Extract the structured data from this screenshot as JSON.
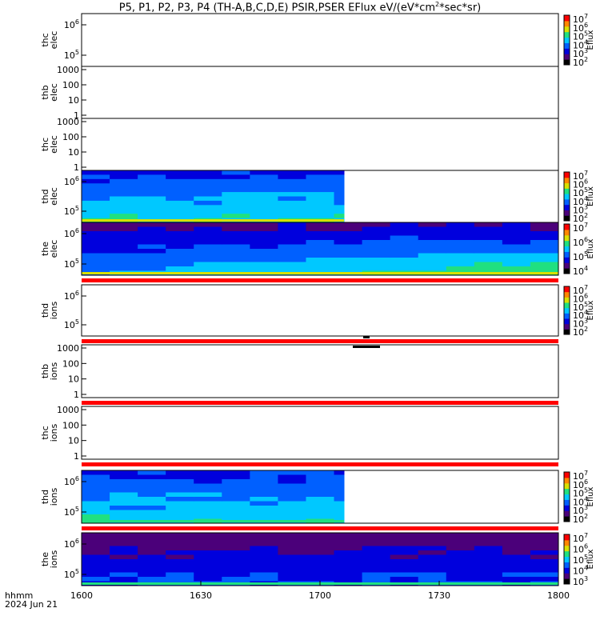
{
  "chart_data": {
    "type": "heatmap",
    "title": "P5, P1, P2, P3, P4 (TH-A,B,C,D,E) PSIR,PSER EFlux eV/(eV*cm",
    "title_sup": "2",
    "title_tail": "*sec*sr)",
    "x_ticks": [
      "1600",
      "1630",
      "1700",
      "1730",
      "1800"
    ],
    "x_label_line1": "hhmm",
    "x_label_line2": "2024 Jun 21",
    "colorbar_label": "Eflux",
    "colormap": [
      "#000000",
      "#4b007a",
      "#0000dd",
      "#0060ff",
      "#00c8ff",
      "#20e080",
      "#d8e000",
      "#ff8800",
      "#ff0000"
    ],
    "panels": [
      {
        "id": "thc-elec",
        "label1": "thc",
        "label2": "elec",
        "yticks": [
          {
            "label": "10",
            "exp": "6"
          },
          {
            "label": "10",
            "exp": "5"
          }
        ],
        "colorbar": [
          {
            "label": "10",
            "exp": "7"
          },
          {
            "label": "10",
            "exp": "6"
          },
          {
            "label": "10",
            "exp": "5"
          },
          {
            "label": "10",
            "exp": "4"
          },
          {
            "label": "10",
            "exp": "3"
          },
          {
            "label": "10",
            "exp": "2"
          }
        ],
        "has_data": false,
        "red_bar": false
      },
      {
        "id": "thb-elec",
        "label1": "thb",
        "label2": "elec",
        "yticks": [
          {
            "label": "1000"
          },
          {
            "label": "100"
          },
          {
            "label": "10"
          },
          {
            "label": "1"
          }
        ],
        "colorbar": [],
        "has_data": false,
        "red_bar": false
      },
      {
        "id": "thc-elec-2",
        "label1": "thc",
        "label2": "elec",
        "yticks": [
          {
            "label": "1000"
          },
          {
            "label": "100"
          },
          {
            "label": "10"
          },
          {
            "label": "1"
          }
        ],
        "colorbar": [],
        "has_data": false,
        "red_bar": false
      },
      {
        "id": "thd-elec",
        "label1": "thd",
        "label2": "elec",
        "yticks": [
          {
            "label": "10",
            "exp": "6"
          },
          {
            "label": "10",
            "exp": "5"
          }
        ],
        "colorbar": [
          {
            "label": "10",
            "exp": "7"
          },
          {
            "label": "10",
            "exp": "6"
          },
          {
            "label": "10",
            "exp": "5"
          },
          {
            "label": "10",
            "exp": "4"
          },
          {
            "label": "10",
            "exp": "3"
          },
          {
            "label": "10",
            "exp": "2"
          }
        ],
        "has_data": true,
        "data_end": "1706",
        "red_bar": false
      },
      {
        "id": "the-elec",
        "label1": "the",
        "label2": "elec",
        "yticks": [
          {
            "label": "10",
            "exp": "6"
          },
          {
            "label": "10",
            "exp": "5"
          }
        ],
        "colorbar": [
          {
            "label": "10",
            "exp": "7"
          },
          {
            "label": "10",
            "exp": "6"
          },
          {
            "label": "10",
            "exp": "5"
          },
          {
            "label": "10",
            "exp": "4"
          }
        ],
        "has_data": true,
        "data_end": "1800",
        "red_bar": true
      },
      {
        "id": "thd-ions",
        "label1": "thd",
        "label2": "ions",
        "yticks": [
          {
            "label": "10",
            "exp": "6"
          },
          {
            "label": "10",
            "exp": "5"
          }
        ],
        "colorbar": [
          {
            "label": "10",
            "exp": "7"
          },
          {
            "label": "10",
            "exp": "6"
          },
          {
            "label": "10",
            "exp": "5"
          },
          {
            "label": "10",
            "exp": "4"
          },
          {
            "label": "10",
            "exp": "3"
          },
          {
            "label": "10",
            "exp": "2"
          }
        ],
        "has_data": false,
        "red_bar": true
      },
      {
        "id": "thb-ions",
        "label1": "thb",
        "label2": "ions",
        "yticks": [
          {
            "label": "1000"
          },
          {
            "label": "100"
          },
          {
            "label": "10"
          },
          {
            "label": "1"
          }
        ],
        "colorbar": [],
        "has_data": false,
        "red_bar": true
      },
      {
        "id": "thc-ions",
        "label1": "thc",
        "label2": "ions",
        "yticks": [
          {
            "label": "1000"
          },
          {
            "label": "100"
          },
          {
            "label": "10"
          },
          {
            "label": "1"
          }
        ],
        "colorbar": [],
        "has_data": false,
        "red_bar": true
      },
      {
        "id": "thd-ions-2",
        "label1": "thd",
        "label2": "ions",
        "yticks": [
          {
            "label": "10",
            "exp": "6"
          },
          {
            "label": "10",
            "exp": "5"
          }
        ],
        "colorbar": [
          {
            "label": "10",
            "exp": "7"
          },
          {
            "label": "10",
            "exp": "6"
          },
          {
            "label": "10",
            "exp": "5"
          },
          {
            "label": "10",
            "exp": "4"
          },
          {
            "label": "10",
            "exp": "3"
          },
          {
            "label": "10",
            "exp": "2"
          }
        ],
        "has_data": true,
        "data_end": "1706",
        "red_bar": true
      },
      {
        "id": "the-ions",
        "label1": "the",
        "label2": "ions",
        "yticks": [
          {
            "label": "10",
            "exp": "6"
          },
          {
            "label": "10",
            "exp": "5"
          }
        ],
        "colorbar": [
          {
            "label": "10",
            "exp": "7"
          },
          {
            "label": "10",
            "exp": "6"
          },
          {
            "label": "10",
            "exp": "5"
          },
          {
            "label": "10",
            "exp": "4"
          },
          {
            "label": "10",
            "exp": "3"
          }
        ],
        "has_data": true,
        "data_end": "1800",
        "red_bar": false
      }
    ]
  }
}
